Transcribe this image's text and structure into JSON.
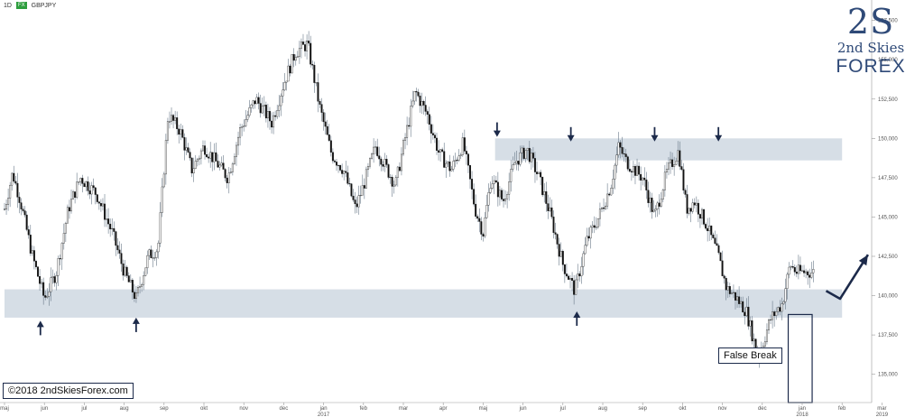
{
  "header": {
    "interval": "1D",
    "badge": "FX",
    "symbol": "GBPJPY"
  },
  "logo": {
    "mark": "2S",
    "line1": "2nd Skies",
    "line2": "FOREX"
  },
  "copyright": "©2018 2ndSkiesForex.com",
  "annotation": "False Break",
  "colors": {
    "zone": "#d6dee6",
    "arrow": "#1c2a4a",
    "candle": "#111111"
  },
  "chart_data": {
    "type": "candlestick",
    "symbol": "GBPJPY",
    "interval": "1D",
    "ylim": [
      133.2,
      158.8
    ],
    "y_ticks": [
      "157,500",
      "155,000",
      "152,500",
      "150,000",
      "147,500",
      "145,000",
      "142,500",
      "140,000",
      "137,500",
      "135,000"
    ],
    "y_tick_values": [
      157.5,
      155,
      152.5,
      150,
      147.5,
      145,
      142.5,
      140,
      137.5,
      135
    ],
    "month_labels": [
      "maj",
      "jun",
      "jul",
      "aug",
      "sep",
      "okt",
      "nov",
      "dec",
      "jan",
      "feb",
      "mar",
      "apr",
      "maj",
      "jun",
      "jul",
      "aug",
      "sep",
      "okt",
      "nov",
      "dec",
      "jan",
      "feb",
      "mar"
    ],
    "year_labels": [
      "2017",
      "2018",
      "2019"
    ],
    "year_label_months": [
      8,
      20,
      22
    ],
    "close_path": {
      "x_months": [
        0,
        0.2,
        0.4,
        0.7,
        1.0,
        1.3,
        1.6,
        1.9,
        2.3,
        2.7,
        3.0,
        3.3,
        3.6,
        3.85,
        4.1,
        4.4,
        4.7,
        5.0,
        5.3,
        5.6,
        5.9,
        6.3,
        6.7,
        7.0,
        7.3,
        7.6,
        7.9,
        8.2,
        8.5,
        8.8,
        9.0,
        9.3,
        9.6,
        9.8,
        10.0,
        10.3,
        10.6,
        10.9,
        11.2,
        11.5,
        11.8,
        12.0,
        12.2,
        12.3,
        12.5,
        12.8,
        13.1,
        13.4,
        13.7,
        14.0,
        14.3,
        14.6,
        14.9,
        15.2,
        15.4,
        15.6,
        15.8,
        16.0,
        16.3,
        16.6,
        16.9,
        17.1,
        17.3,
        17.6,
        17.9,
        18.1,
        18.3,
        18.6,
        18.9,
        19.2,
        19.5,
        19.7,
        19.85,
        20.0,
        20.15,
        20.3
      ],
      "close": [
        145.5,
        147.8,
        146.0,
        142.5,
        139.8,
        141.5,
        145.5,
        147.5,
        146.5,
        144.0,
        141.5,
        139.8,
        142.5,
        143.0,
        151.5,
        150.5,
        148.0,
        149.5,
        148.5,
        147.5,
        150.5,
        152.5,
        151.0,
        153.5,
        155.5,
        156.0,
        152.0,
        149.0,
        148.0,
        145.5,
        147.0,
        149.5,
        148.0,
        147.0,
        149.5,
        153.0,
        151.5,
        149.0,
        148.0,
        149.7,
        145.5,
        144.0,
        147.5,
        147.0,
        146.0,
        148.5,
        149.3,
        147.5,
        145.0,
        142.0,
        140.3,
        143.5,
        145.0,
        147.0,
        149.5,
        148.5,
        148.0,
        147.5,
        145.0,
        147.8,
        149.2,
        145.5,
        146.0,
        144.5,
        142.5,
        140.5,
        140.0,
        139.0,
        136.0,
        138.5,
        139.5,
        142.0,
        141.5,
        141.5,
        141.5,
        141.5
      ]
    },
    "zones": [
      {
        "name": "resistance",
        "from_month": 12.3,
        "to_month": 21.0,
        "low": 148.6,
        "high": 150.0
      },
      {
        "name": "support",
        "from_month": 0.0,
        "to_month": 21.0,
        "low": 138.6,
        "high": 140.4
      }
    ],
    "arrows": [
      {
        "dir": "up",
        "month": 0.9,
        "price": 138.4
      },
      {
        "dir": "up",
        "month": 3.3,
        "price": 138.6
      },
      {
        "dir": "up",
        "month": 14.35,
        "price": 139.0
      },
      {
        "dir": "down",
        "month": 12.35,
        "price": 150.1
      },
      {
        "dir": "down",
        "month": 14.2,
        "price": 149.8
      },
      {
        "dir": "down",
        "month": 16.3,
        "price": 149.8
      },
      {
        "dir": "down",
        "month": 17.9,
        "price": 149.8
      }
    ],
    "projection": {
      "from": [
        20.6,
        140.3
      ],
      "mid": [
        20.95,
        139.8
      ],
      "to": [
        21.65,
        142.6
      ]
    },
    "false_break_box": {
      "from_month": 19.65,
      "to_month": 20.25,
      "low": 133.2,
      "high": 138.8
    }
  }
}
